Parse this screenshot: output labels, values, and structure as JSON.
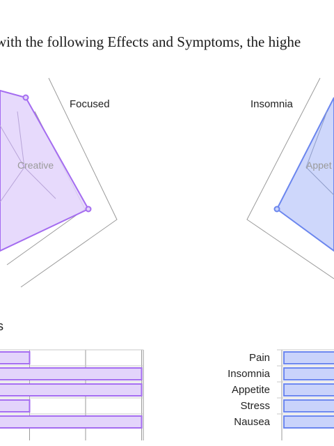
{
  "headline": "with the following Effects and Symptoms, the highe",
  "section_fragment": "s",
  "colors": {
    "purple_stroke": "#a46cf0",
    "purple_fill": "#e3d4fb",
    "blue_stroke": "#6b86ee",
    "blue_fill": "#c9d3fb",
    "grid": "#9a9a9a"
  },
  "effects_radar": {
    "labels": {
      "focused": "Focused",
      "center": "Creative"
    }
  },
  "symptoms_radar": {
    "labels": {
      "insomnia": "Insomnia",
      "center": "Appet"
    }
  },
  "chart_data": [
    {
      "type": "radar",
      "title": "",
      "axes": [
        "Focused",
        "Creative"
      ],
      "series": [
        {
          "values": []
        }
      ]
    },
    {
      "type": "radar",
      "title": "",
      "axes": [
        "Insomnia"
      ],
      "series": [
        {
          "values": []
        }
      ]
    },
    {
      "type": "bar",
      "orientation": "horizontal",
      "categories": [
        "",
        "",
        "",
        "",
        ""
      ],
      "values": [
        1,
        3,
        3,
        1,
        3
      ],
      "xlim": [
        0,
        4
      ],
      "grid": true
    },
    {
      "type": "bar",
      "orientation": "horizontal",
      "categories": [
        "Pain",
        "Insomnia",
        "Appetite",
        "Stress",
        "Nausea"
      ],
      "grid": true
    }
  ]
}
